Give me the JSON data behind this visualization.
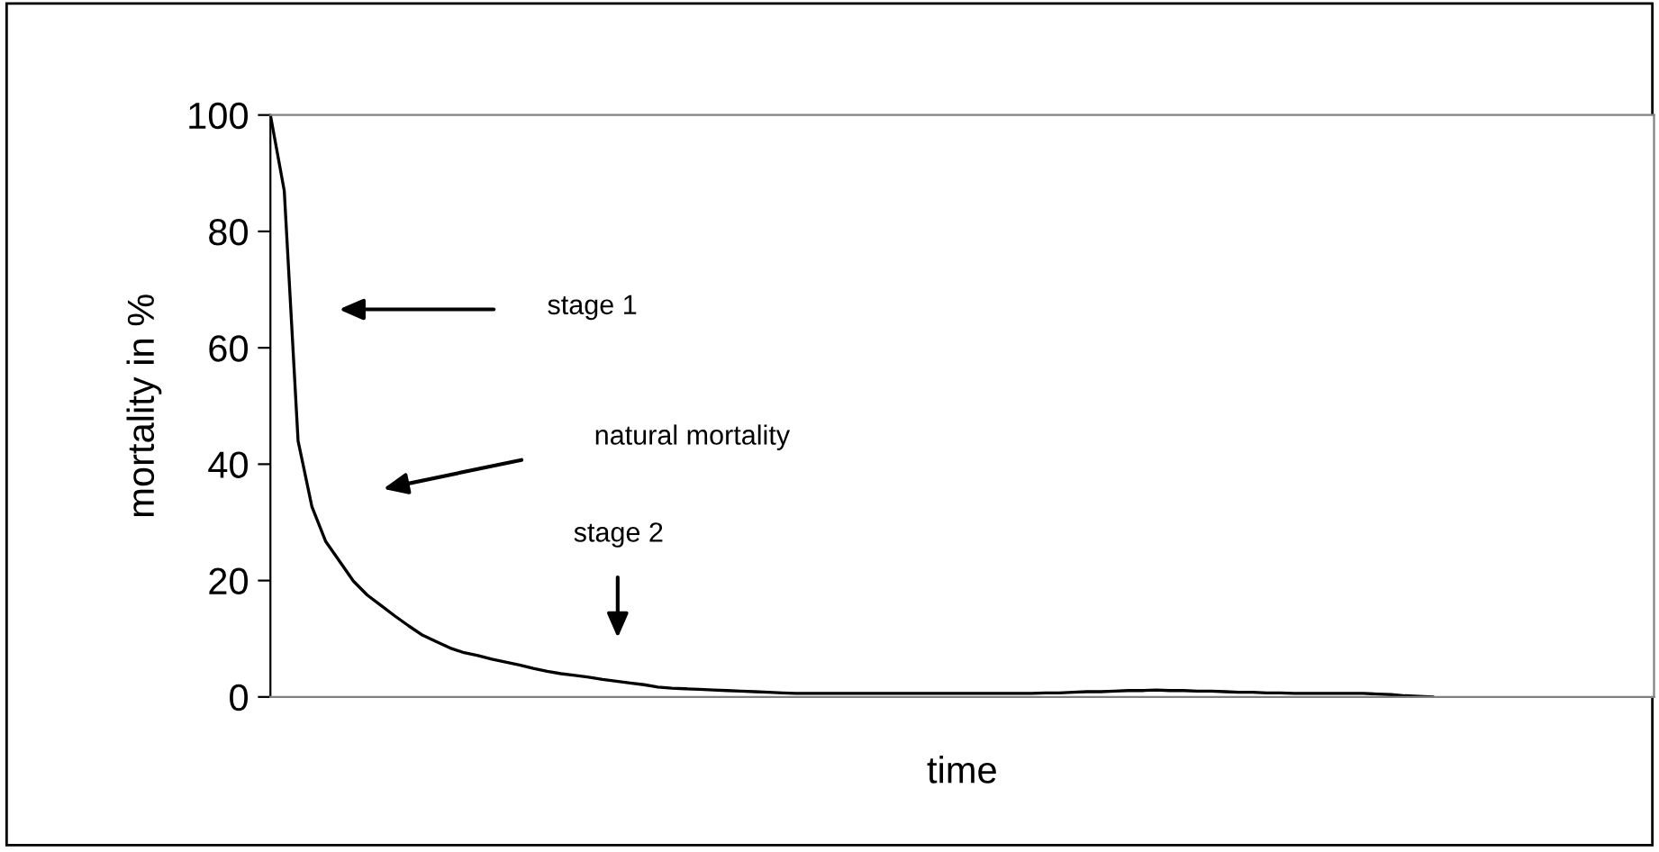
{
  "chart_data": {
    "type": "line",
    "xlabel": "time",
    "ylabel": "mortality in %",
    "categories": [
      null,
      null,
      null,
      null,
      null,
      null,
      null,
      null,
      null,
      null,
      null,
      null,
      null,
      null,
      null,
      null,
      null,
      null,
      null,
      null,
      null,
      null,
      null,
      null,
      null,
      null,
      null,
      null,
      null,
      null,
      null,
      null,
      null,
      null,
      null,
      null,
      null,
      null,
      null,
      null,
      null,
      null,
      null,
      null,
      null,
      null,
      null,
      null,
      null,
      null,
      null,
      null,
      null,
      null,
      null,
      null,
      null,
      null,
      null,
      null,
      null,
      null,
      null,
      null,
      null,
      null,
      null,
      null,
      null,
      null,
      null,
      null,
      null,
      null,
      null,
      null,
      null,
      null,
      null,
      null,
      null,
      null,
      null,
      null,
      null,
      null,
      null,
      null,
      null,
      null,
      null,
      null,
      null,
      null,
      null,
      null,
      null,
      null,
      null,
      null,
      null
    ],
    "series": [
      {
        "color": "#000000",
        "values": [
          100,
          87,
          44,
          32.7,
          26.7,
          23.3,
          19.9,
          17.5,
          15.7,
          13.9,
          12.2,
          10.6,
          9.5,
          8.4,
          7.6,
          7.1,
          6.5,
          6.0,
          5.5,
          4.9,
          4.4,
          4.0,
          3.7,
          3.4,
          3.0,
          2.7,
          2.4,
          2.1,
          1.7,
          1.5,
          1.4,
          1.3,
          1.2,
          1.1,
          1.0,
          0.9,
          0.8,
          0.7,
          0.6,
          0.6,
          0.6,
          0.6,
          0.6,
          0.6,
          0.6,
          0.6,
          0.6,
          0.6,
          0.6,
          0.6,
          0.6,
          0.6,
          0.6,
          0.6,
          0.6,
          0.6,
          0.7,
          0.7,
          0.8,
          0.9,
          0.9,
          1.0,
          1.1,
          1.1,
          1.2,
          1.1,
          1.1,
          1.0,
          1.0,
          0.9,
          0.8,
          0.8,
          0.7,
          0.7,
          0.6,
          0.6,
          0.6,
          0.6,
          0.6,
          0.6,
          0.5,
          0.4,
          0.2,
          0.1,
          0,
          null,
          null,
          null,
          null,
          null,
          null,
          null,
          null,
          null,
          null,
          null,
          null,
          null,
          null,
          null,
          null
        ]
      }
    ],
    "ylim": [
      0,
      100
    ],
    "yticks": [
      0,
      20,
      40,
      60,
      80,
      100
    ],
    "grid": false,
    "legend": false,
    "marker": "none",
    "line_style": "solid",
    "annotations": [
      "stage 1",
      "natural mortality",
      "stage 2"
    ]
  }
}
